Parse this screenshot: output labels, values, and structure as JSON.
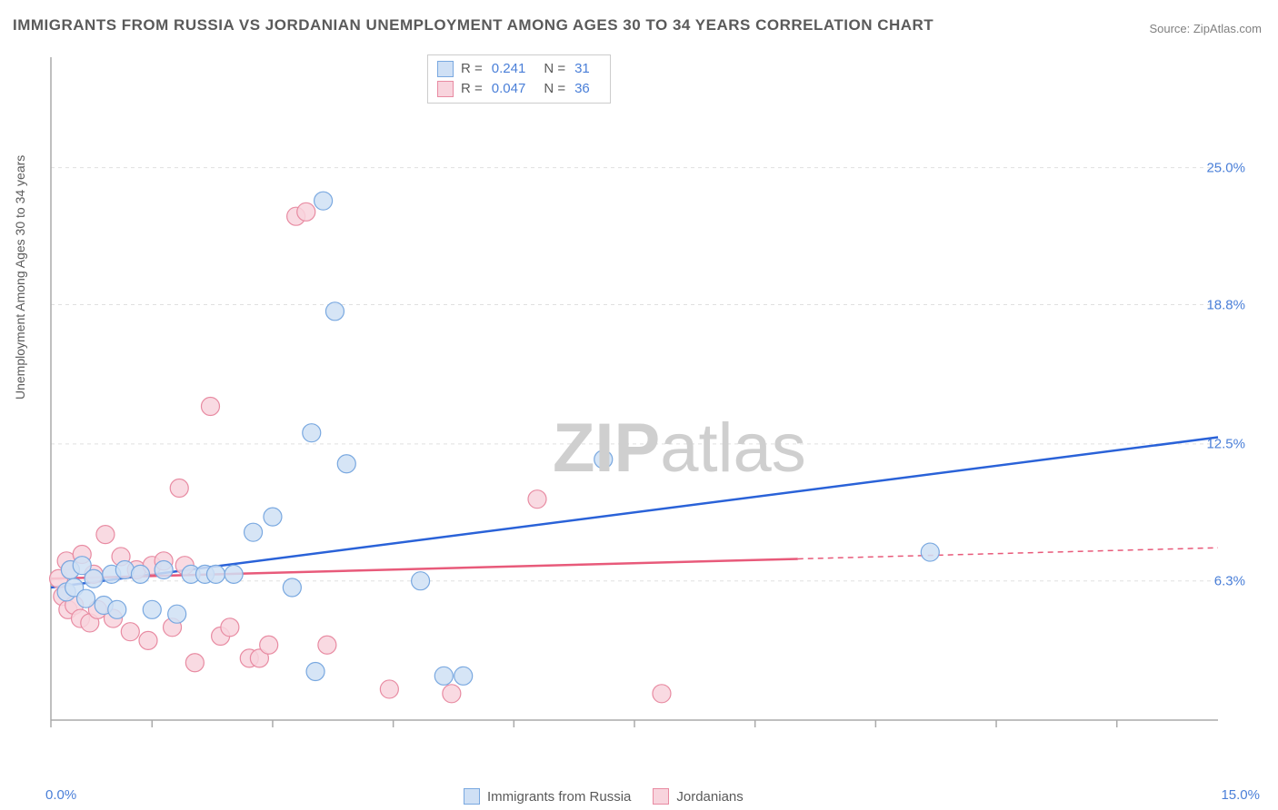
{
  "title": "IMMIGRANTS FROM RUSSIA VS JORDANIAN UNEMPLOYMENT AMONG AGES 30 TO 34 YEARS CORRELATION CHART",
  "source_prefix": "Source: ",
  "source_name": "ZipAtlas.com",
  "y_axis_label": "Unemployment Among Ages 30 to 34 years",
  "watermark_bold": "ZIP",
  "watermark_light": "atlas",
  "chart": {
    "type": "scatter",
    "xlim": [
      0,
      15
    ],
    "ylim": [
      0,
      30
    ],
    "x_tick_positions": [
      0,
      1.3,
      2.85,
      4.4,
      5.95,
      7.5,
      9.05,
      10.6,
      12.15,
      13.7
    ],
    "y_gridlines": [
      6.3,
      12.5,
      18.8,
      25.0
    ],
    "y_tick_labels": [
      "6.3%",
      "12.5%",
      "18.8%",
      "25.0%"
    ],
    "x_min_label": "0.0%",
    "x_max_label": "15.0%",
    "plot_bg": "#ffffff",
    "grid_color": "#e0e0e0",
    "axis_color": "#aaaaaa",
    "marker_radius": 10,
    "series": [
      {
        "name": "Immigrants from Russia",
        "fill": "#cfe0f5",
        "stroke": "#79a8e0",
        "line_color": "#2a62d8",
        "R": "0.241",
        "N": "31",
        "trend": {
          "x1": 0,
          "y1": 6.0,
          "x2": 15,
          "y2": 12.8,
          "solid_until_x": 15
        },
        "points": [
          [
            0.2,
            5.8
          ],
          [
            0.25,
            6.8
          ],
          [
            0.3,
            6.0
          ],
          [
            0.4,
            7.0
          ],
          [
            0.45,
            5.5
          ],
          [
            0.55,
            6.4
          ],
          [
            0.68,
            5.2
          ],
          [
            0.78,
            6.6
          ],
          [
            0.85,
            5.0
          ],
          [
            0.95,
            6.8
          ],
          [
            1.15,
            6.6
          ],
          [
            1.3,
            5.0
          ],
          [
            1.45,
            6.8
          ],
          [
            1.62,
            4.8
          ],
          [
            1.8,
            6.6
          ],
          [
            1.98,
            6.6
          ],
          [
            2.12,
            6.6
          ],
          [
            2.35,
            6.6
          ],
          [
            2.6,
            8.5
          ],
          [
            2.85,
            9.2
          ],
          [
            3.1,
            6.0
          ],
          [
            3.35,
            13.0
          ],
          [
            3.4,
            2.2
          ],
          [
            3.5,
            23.5
          ],
          [
            3.65,
            18.5
          ],
          [
            3.8,
            11.6
          ],
          [
            4.75,
            6.3
          ],
          [
            5.05,
            2.0
          ],
          [
            5.3,
            2.0
          ],
          [
            7.1,
            11.8
          ],
          [
            11.3,
            7.6
          ]
        ]
      },
      {
        "name": "Jordanians",
        "fill": "#f8d4dd",
        "stroke": "#e88ba2",
        "line_color": "#e85a7a",
        "R": "0.047",
        "N": "36",
        "trend": {
          "x1": 0,
          "y1": 6.4,
          "x2": 15,
          "y2": 7.8,
          "solid_until_x": 9.6
        },
        "points": [
          [
            0.1,
            6.4
          ],
          [
            0.15,
            5.6
          ],
          [
            0.2,
            7.2
          ],
          [
            0.22,
            5.0
          ],
          [
            0.25,
            6.8
          ],
          [
            0.3,
            5.2
          ],
          [
            0.38,
            4.6
          ],
          [
            0.4,
            7.5
          ],
          [
            0.5,
            4.4
          ],
          [
            0.55,
            6.6
          ],
          [
            0.6,
            5.0
          ],
          [
            0.7,
            8.4
          ],
          [
            0.8,
            4.6
          ],
          [
            0.9,
            7.4
          ],
          [
            1.02,
            4.0
          ],
          [
            1.1,
            6.8
          ],
          [
            1.25,
            3.6
          ],
          [
            1.3,
            7.0
          ],
          [
            1.45,
            7.2
          ],
          [
            1.56,
            4.2
          ],
          [
            1.65,
            10.5
          ],
          [
            1.72,
            7.0
          ],
          [
            1.85,
            2.6
          ],
          [
            2.05,
            14.2
          ],
          [
            2.18,
            3.8
          ],
          [
            2.3,
            4.2
          ],
          [
            2.55,
            2.8
          ],
          [
            2.68,
            2.8
          ],
          [
            2.8,
            3.4
          ],
          [
            3.15,
            22.8
          ],
          [
            3.28,
            23.0
          ],
          [
            3.55,
            3.4
          ],
          [
            4.35,
            1.4
          ],
          [
            5.15,
            1.2
          ],
          [
            6.25,
            10.0
          ],
          [
            7.85,
            1.2
          ]
        ]
      }
    ]
  },
  "legend_top": {
    "rows": [
      {
        "sw_fill": "#cfe0f5",
        "sw_stroke": "#79a8e0",
        "r_label": "R  =",
        "r_val": "0.241",
        "n_label": "N  =",
        "n_val": "31"
      },
      {
        "sw_fill": "#f8d4dd",
        "sw_stroke": "#e88ba2",
        "r_label": "R  =",
        "r_val": "0.047",
        "n_label": "N  =",
        "n_val": "36"
      }
    ]
  },
  "legend_bottom": {
    "items": [
      {
        "sw_fill": "#cfe0f5",
        "sw_stroke": "#79a8e0",
        "label": "Immigrants from Russia"
      },
      {
        "sw_fill": "#f8d4dd",
        "sw_stroke": "#e88ba2",
        "label": "Jordanians"
      }
    ]
  }
}
